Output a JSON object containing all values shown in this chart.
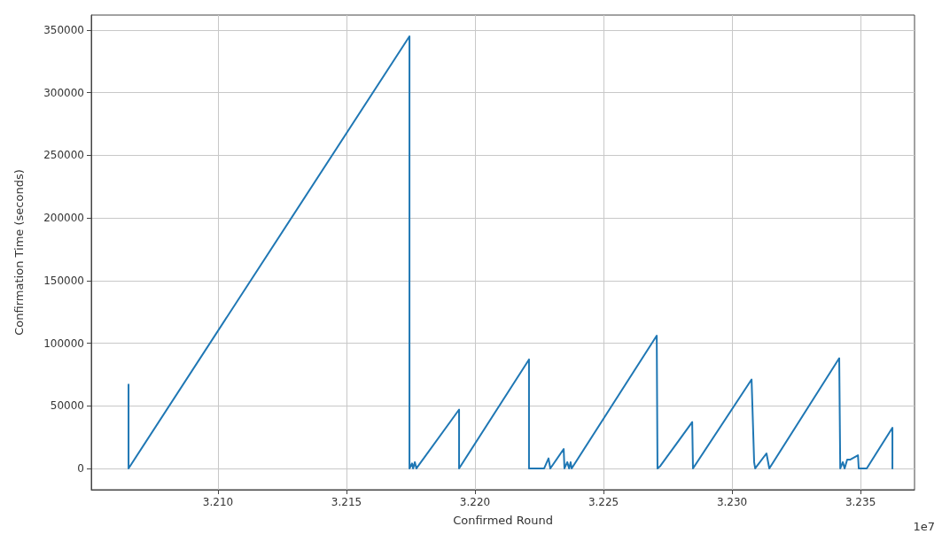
{
  "chart_data": {
    "type": "line",
    "xlabel": "Confirmed Round",
    "ylabel": "Confirmation Time (seconds)",
    "annotations": [
      "1e7"
    ],
    "xlim": [
      3.20507,
      3.2371
    ],
    "xticks": [
      {
        "value": 3.21,
        "label": "3.210"
      },
      {
        "value": 3.215,
        "label": "3.215"
      },
      {
        "value": 3.22,
        "label": "3.220"
      },
      {
        "value": 3.225,
        "label": "3.225"
      },
      {
        "value": 3.23,
        "label": "3.230"
      },
      {
        "value": 3.235,
        "label": "3.235"
      }
    ],
    "ylim": [
      -17000,
      362000
    ],
    "yticks": [
      0,
      50000,
      100000,
      150000,
      200000,
      250000,
      300000,
      350000
    ],
    "grid": true,
    "marker": "none",
    "line_style": "solid",
    "series": [
      {
        "color": "#1f77b4",
        "x": [
          3.20652,
          3.20652,
          3.21745,
          3.21745,
          3.21755,
          3.21759,
          3.21766,
          3.21772,
          3.21938,
          3.21938,
          3.2221,
          3.2221,
          3.22269,
          3.22286,
          3.22293,
          3.22345,
          3.22348,
          3.22359,
          3.22366,
          3.22372,
          3.22376,
          3.22707,
          3.2271,
          3.22721,
          3.22845,
          3.22848,
          3.23076,
          3.23086,
          3.2309,
          3.23134,
          3.23145,
          3.23417,
          3.23421,
          3.23431,
          3.23438,
          3.23448,
          3.23459,
          3.2349,
          3.23493,
          3.23524,
          3.23624,
          3.23624
        ],
        "values": [
          67000,
          0,
          345000,
          0,
          4000,
          0,
          5000,
          0,
          47000,
          0,
          87000,
          0,
          0,
          8000,
          0,
          15500,
          0,
          5000,
          0,
          5000,
          0,
          106000,
          0,
          2000,
          37000,
          0,
          71000,
          5000,
          0,
          12000,
          0,
          88000,
          0,
          5000,
          0,
          7000,
          7000,
          10500,
          0,
          0,
          32500,
          0
        ]
      }
    ]
  }
}
